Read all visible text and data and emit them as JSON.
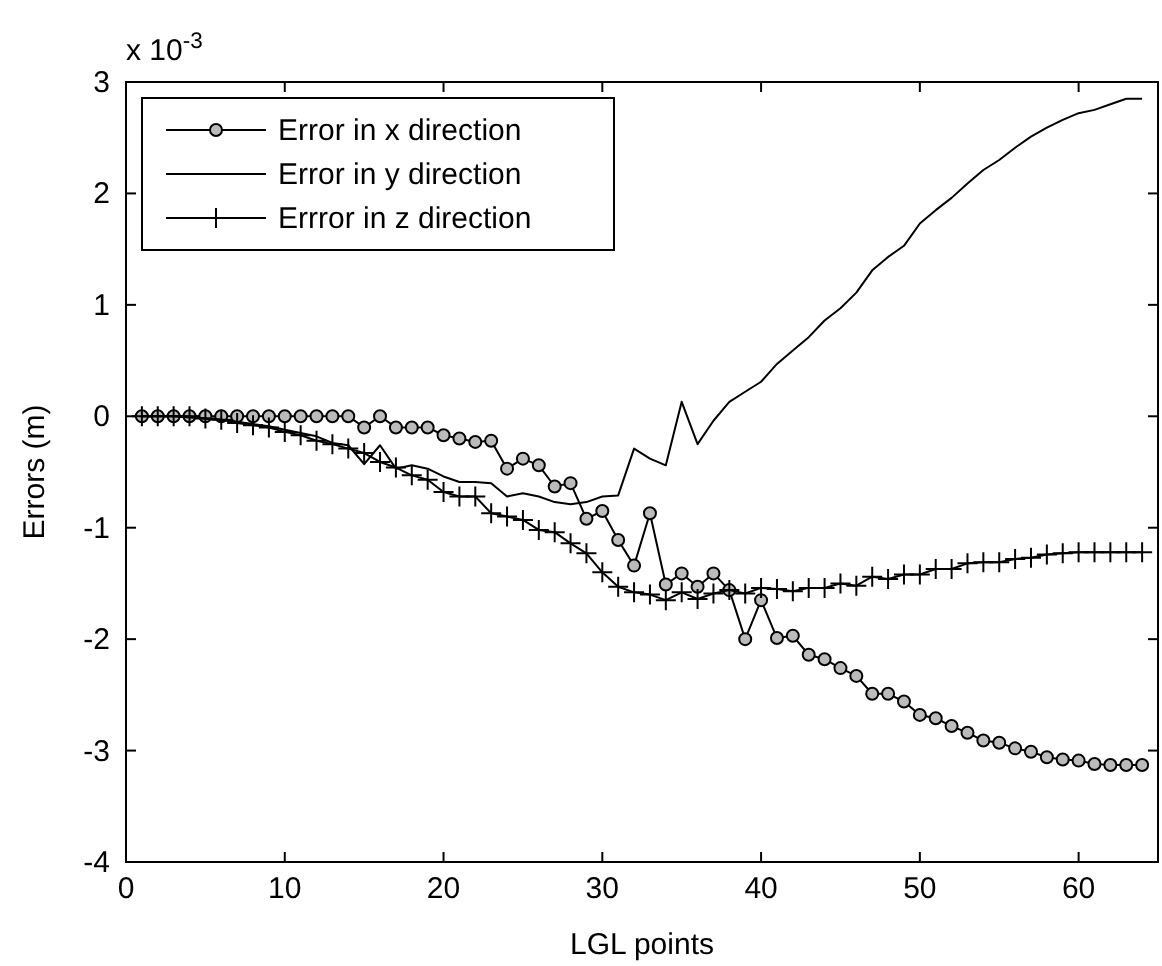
{
  "chart_data": {
    "type": "line",
    "xlabel": "LGL points",
    "ylabel": "Errors (m)",
    "annotations": [
      "x 10$^{-3}$"
    ],
    "x": [
      1,
      2,
      3,
      4,
      5,
      6,
      7,
      8,
      9,
      10,
      11,
      12,
      13,
      14,
      15,
      16,
      17,
      18,
      19,
      20,
      21,
      22,
      23,
      24,
      25,
      26,
      27,
      28,
      29,
      30,
      31,
      32,
      33,
      34,
      35,
      36,
      37,
      38,
      39,
      40,
      41,
      42,
      43,
      44,
      45,
      46,
      47,
      48,
      49,
      50,
      51,
      52,
      53,
      54,
      55,
      56,
      57,
      58,
      59,
      60,
      61,
      62,
      63,
      64
    ],
    "xlim": [
      0,
      65
    ],
    "xticks": [
      0,
      10,
      20,
      30,
      40,
      50,
      60
    ],
    "ylim": [
      -4,
      3
    ],
    "yticks": [
      -4,
      -3,
      -2,
      -1,
      0,
      1,
      2,
      3
    ],
    "grid": false,
    "legend": "top left",
    "series": [
      {
        "name": "Error in x direction",
        "color": "#000000",
        "marker": "circle",
        "values": [
          0,
          0,
          0,
          0,
          0,
          0,
          0,
          0,
          0,
          0,
          0,
          0,
          0,
          0,
          -0.1,
          0,
          -0.1,
          -0.1,
          -0.1,
          -0.17,
          -0.2,
          -0.23,
          -0.22,
          -0.47,
          -0.38,
          -0.44,
          -0.63,
          -0.6,
          -0.92,
          -0.85,
          -1.11,
          -1.34,
          -0.87,
          -1.51,
          -1.41,
          -1.53,
          -1.41,
          -1.56,
          -2.0,
          -1.65,
          -1.99,
          -1.97,
          -2.14,
          -2.18,
          -2.26,
          -2.33,
          -2.49,
          -2.49,
          -2.56,
          -2.68,
          -2.71,
          -2.78,
          -2.84,
          -2.91,
          -2.93,
          -2.98,
          -3.01,
          -3.06,
          -3.08,
          -3.09,
          -3.12,
          -3.13,
          -3.13,
          -3.13
        ]
      },
      {
        "name": "Error in y direction",
        "color": "#000000",
        "marker": "none",
        "values": [
          0,
          0,
          0,
          -0.01,
          -0.02,
          -0.03,
          -0.05,
          -0.07,
          -0.09,
          -0.12,
          -0.15,
          -0.18,
          -0.24,
          -0.26,
          -0.43,
          -0.26,
          -0.47,
          -0.44,
          -0.47,
          -0.54,
          -0.59,
          -0.59,
          -0.6,
          -0.72,
          -0.69,
          -0.72,
          -0.77,
          -0.79,
          -0.77,
          -0.72,
          -0.71,
          -0.29,
          -0.38,
          -0.44,
          0.13,
          -0.25,
          -0.04,
          0.13,
          0.22,
          0.31,
          0.47,
          0.59,
          0.71,
          0.86,
          0.97,
          1.11,
          1.31,
          1.43,
          1.53,
          1.73,
          1.85,
          1.96,
          2.09,
          2.21,
          2.3,
          2.41,
          2.51,
          2.59,
          2.66,
          2.72,
          2.75,
          2.8,
          2.85,
          2.85
        ]
      },
      {
        "name": "Errror in z direction",
        "color": "#000000",
        "marker": "cross",
        "values": [
          0,
          0,
          0,
          0,
          -0.02,
          -0.03,
          -0.06,
          -0.08,
          -0.1,
          -0.14,
          -0.17,
          -0.22,
          -0.25,
          -0.29,
          -0.33,
          -0.41,
          -0.46,
          -0.53,
          -0.57,
          -0.68,
          -0.72,
          -0.72,
          -0.87,
          -0.9,
          -0.93,
          -1.02,
          -1.04,
          -1.14,
          -1.23,
          -1.4,
          -1.53,
          -1.58,
          -1.6,
          -1.65,
          -1.58,
          -1.64,
          -1.59,
          -1.56,
          -1.59,
          -1.54,
          -1.55,
          -1.57,
          -1.54,
          -1.54,
          -1.5,
          -1.52,
          -1.44,
          -1.46,
          -1.42,
          -1.42,
          -1.37,
          -1.37,
          -1.32,
          -1.31,
          -1.31,
          -1.28,
          -1.27,
          -1.24,
          -1.23,
          -1.22,
          -1.22,
          -1.22,
          -1.22,
          -1.22
        ]
      }
    ]
  }
}
